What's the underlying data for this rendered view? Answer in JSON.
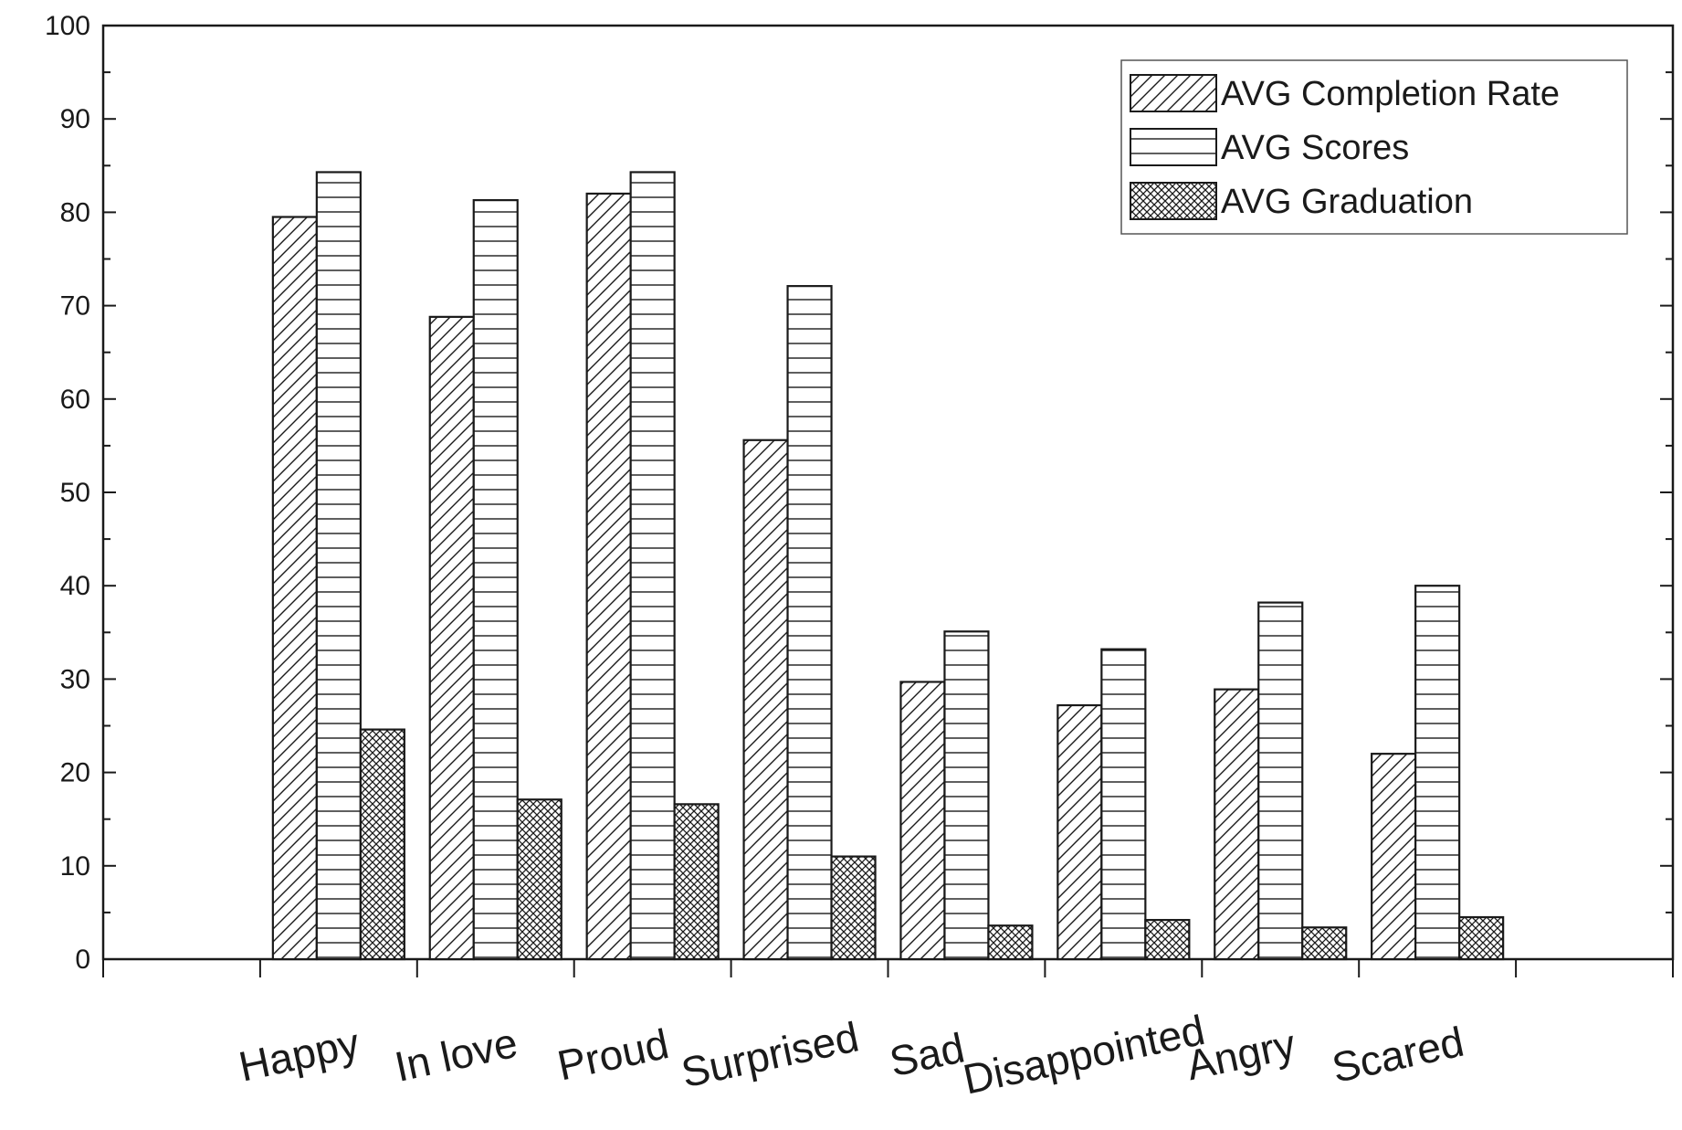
{
  "chart_data": {
    "type": "bar",
    "title": "",
    "xlabel": "",
    "ylabel": "",
    "ylim": [
      0,
      100
    ],
    "yticks": [
      0,
      10,
      20,
      30,
      40,
      50,
      60,
      70,
      80,
      90,
      100
    ],
    "categories": [
      "Happy",
      "In love",
      "Proud",
      "Surprised",
      "Sad",
      "Disappointed",
      "Angry",
      "Scared"
    ],
    "series": [
      {
        "name": "AVG Completion Rate",
        "pattern": "diagonal-hatch",
        "values": [
          79.5,
          68.8,
          82.0,
          55.6,
          29.7,
          27.2,
          28.9,
          22.0
        ]
      },
      {
        "name": "AVG Scores",
        "pattern": "horizontal-lines",
        "values": [
          84.3,
          81.3,
          84.3,
          72.1,
          35.1,
          33.2,
          38.2,
          40.0
        ]
      },
      {
        "name": "AVG Graduation",
        "pattern": "crosshatch",
        "values": [
          24.6,
          17.1,
          16.6,
          11.0,
          3.6,
          4.2,
          3.4,
          4.5
        ]
      }
    ],
    "legend_position": "top-right",
    "grid": false,
    "colors": {
      "stroke": "#1a1a1a",
      "background": "#ffffff"
    }
  }
}
